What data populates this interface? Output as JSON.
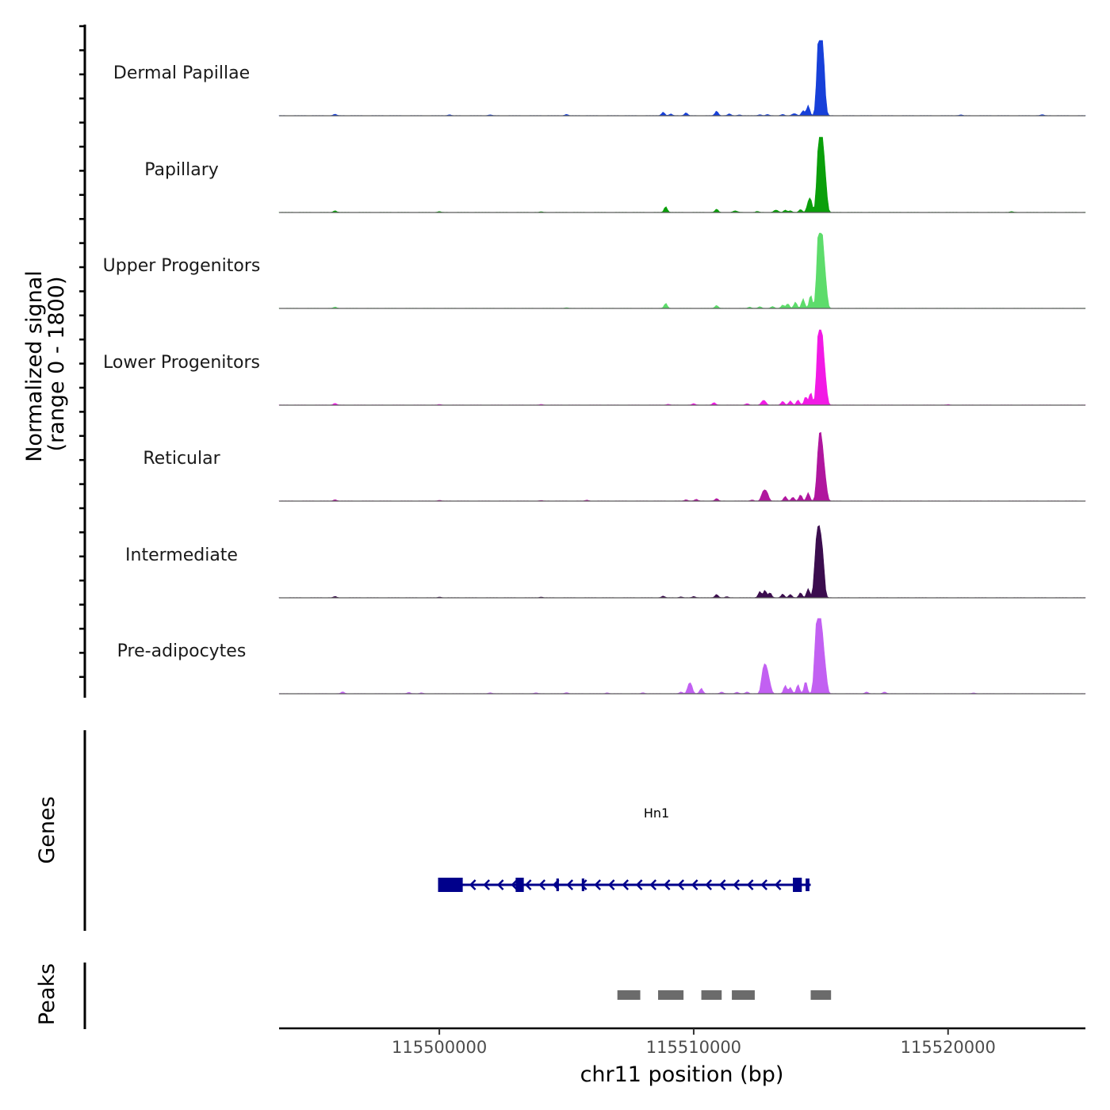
{
  "chart_data": {
    "type": "area",
    "title": "",
    "ylabel": "Normalized signal",
    "ylabel_range": "(range 0 - 1800)",
    "ylim": [
      0,
      1800
    ],
    "xlabel": "chr11 position (bp)",
    "xlim": [
      115493700,
      115525400
    ],
    "x_ticks": [
      115500000,
      115510000,
      115520000
    ],
    "x_tick_labels": [
      "115500000",
      "115510000",
      "115520000"
    ],
    "tracks": [
      {
        "name": "Dermal Papillae",
        "color": "#1740d9",
        "peaks": [
          [
            115495900,
            35
          ],
          [
            115511400,
            45
          ],
          [
            115511800,
            20
          ],
          [
            115514300,
            120
          ],
          [
            115514500,
            250
          ],
          [
            115513900,
            30
          ],
          [
            115514000,
            35
          ],
          [
            115512900,
            30
          ],
          [
            115512600,
            25
          ],
          [
            115513500,
            30
          ],
          [
            115514900,
            1500
          ],
          [
            115515000,
            1400
          ],
          [
            115515100,
            1050
          ],
          [
            115510900,
            110
          ],
          [
            115509700,
            70
          ],
          [
            115508800,
            85
          ],
          [
            115509100,
            40
          ],
          [
            115505000,
            30
          ],
          [
            115502000,
            20
          ],
          [
            115500400,
            22
          ],
          [
            115520500,
            20
          ],
          [
            115523700,
            25
          ]
        ]
      },
      {
        "name": "Papillary",
        "color": "#0a9f0a",
        "peaks": [
          [
            115495900,
            40
          ],
          [
            115508900,
            140
          ],
          [
            115511600,
            30
          ],
          [
            115511700,
            20
          ],
          [
            115510900,
            80
          ],
          [
            115513300,
            30
          ],
          [
            115513600,
            55
          ],
          [
            115513200,
            45
          ],
          [
            115513800,
            40
          ],
          [
            115514200,
            70
          ],
          [
            115514500,
            200
          ],
          [
            115514600,
            280
          ],
          [
            115514900,
            1250
          ],
          [
            115515000,
            1350
          ],
          [
            115515100,
            1000
          ],
          [
            115515200,
            400
          ],
          [
            115500000,
            20
          ],
          [
            115504000,
            15
          ],
          [
            115512500,
            25
          ],
          [
            115522500,
            20
          ]
        ]
      },
      {
        "name": "Upper Progenitors",
        "color": "#5ddc6b",
        "peaks": [
          [
            115495900,
            30
          ],
          [
            115508900,
            120
          ],
          [
            115510900,
            70
          ],
          [
            115512600,
            40
          ],
          [
            115513100,
            45
          ],
          [
            115513500,
            80
          ],
          [
            115513700,
            110
          ],
          [
            115514000,
            150
          ],
          [
            115514300,
            230
          ],
          [
            115514600,
            320
          ],
          [
            115514900,
            1500
          ],
          [
            115515000,
            1300
          ],
          [
            115515100,
            900
          ],
          [
            115515200,
            350
          ],
          [
            115512200,
            30
          ],
          [
            115505000,
            15
          ]
        ]
      },
      {
        "name": "Lower Progenitors",
        "color": "#f21ae5",
        "peaks": [
          [
            115495900,
            40
          ],
          [
            115510000,
            35
          ],
          [
            115510800,
            60
          ],
          [
            115512100,
            35
          ],
          [
            115512700,
            80
          ],
          [
            115512800,
            80
          ],
          [
            115513500,
            90
          ],
          [
            115513800,
            100
          ],
          [
            115514100,
            120
          ],
          [
            115514400,
            200
          ],
          [
            115514600,
            300
          ],
          [
            115514900,
            1450
          ],
          [
            115515000,
            1300
          ],
          [
            115515100,
            800
          ],
          [
            115515200,
            300
          ],
          [
            115509000,
            20
          ],
          [
            115500000,
            15
          ],
          [
            115504000,
            15
          ],
          [
            115520000,
            12
          ]
        ]
      },
      {
        "name": "Reticular",
        "color": "#b0169e",
        "peaks": [
          [
            115495900,
            30
          ],
          [
            115505800,
            20
          ],
          [
            115510100,
            40
          ],
          [
            115509700,
            30
          ],
          [
            115510900,
            60
          ],
          [
            115512700,
            160
          ],
          [
            115512800,
            190
          ],
          [
            115512900,
            150
          ],
          [
            115513600,
            110
          ],
          [
            115513900,
            90
          ],
          [
            115514200,
            150
          ],
          [
            115514500,
            200
          ],
          [
            115514900,
            1000
          ],
          [
            115515000,
            1050
          ],
          [
            115515100,
            650
          ],
          [
            115515200,
            250
          ],
          [
            115512300,
            25
          ],
          [
            115500000,
            15
          ],
          [
            115504000,
            12
          ]
        ]
      },
      {
        "name": "Intermediate",
        "color": "#3b0d4e",
        "peaks": [
          [
            115495900,
            30
          ],
          [
            115508800,
            40
          ],
          [
            115510000,
            30
          ],
          [
            115510900,
            80
          ],
          [
            115511300,
            25
          ],
          [
            115512600,
            150
          ],
          [
            115512800,
            180
          ],
          [
            115513000,
            120
          ],
          [
            115513500,
            90
          ],
          [
            115513800,
            80
          ],
          [
            115514200,
            120
          ],
          [
            115514500,
            220
          ],
          [
            115514800,
            900
          ],
          [
            115514900,
            1050
          ],
          [
            115515000,
            1000
          ],
          [
            115515100,
            550
          ],
          [
            115509500,
            20
          ],
          [
            115500000,
            15
          ],
          [
            115504000,
            15
          ]
        ]
      },
      {
        "name": "Pre-adipocytes",
        "color": "#c260f2",
        "peaks": [
          [
            115496200,
            45
          ],
          [
            115498800,
            30
          ],
          [
            115502000,
            20
          ],
          [
            115503800,
            20
          ],
          [
            115509800,
            180
          ],
          [
            115509900,
            190
          ],
          [
            115510300,
            130
          ],
          [
            115509500,
            40
          ],
          [
            115511100,
            40
          ],
          [
            115511700,
            35
          ],
          [
            115512100,
            40
          ],
          [
            115512700,
            400
          ],
          [
            115512800,
            520
          ],
          [
            115512900,
            400
          ],
          [
            115513000,
            180
          ],
          [
            115513600,
            200
          ],
          [
            115513800,
            150
          ],
          [
            115514100,
            220
          ],
          [
            115514400,
            300
          ],
          [
            115514800,
            1100
          ],
          [
            115514900,
            1200
          ],
          [
            115515000,
            1150
          ],
          [
            115515100,
            700
          ],
          [
            115515200,
            300
          ],
          [
            115516800,
            40
          ],
          [
            115517500,
            40
          ],
          [
            115499300,
            20
          ],
          [
            115505000,
            25
          ],
          [
            115506600,
            20
          ],
          [
            115508000,
            22
          ],
          [
            115521000,
            18
          ]
        ]
      }
    ],
    "gene_track": {
      "label": "Genes",
      "gene_name": "Hn1",
      "strand": "-",
      "color": "#00008b",
      "start": 115500000,
      "end": 115514600,
      "line_start": 115500000,
      "line_end": 115514600,
      "exons": [
        [
          115499950,
          115500920
        ],
        [
          115503000,
          115503320
        ],
        [
          115504600,
          115504700
        ],
        [
          115505600,
          115505700
        ],
        [
          115513900,
          115514250
        ],
        [
          115514400,
          115514550
        ]
      ]
    },
    "peak_track": {
      "label": "Peaks",
      "color": "#6b6b6b",
      "peaks": [
        [
          115507000,
          115507900
        ],
        [
          115508600,
          115509600
        ],
        [
          115510300,
          115511100
        ],
        [
          115511500,
          115512400
        ],
        [
          115514600,
          115515400
        ]
      ]
    }
  }
}
